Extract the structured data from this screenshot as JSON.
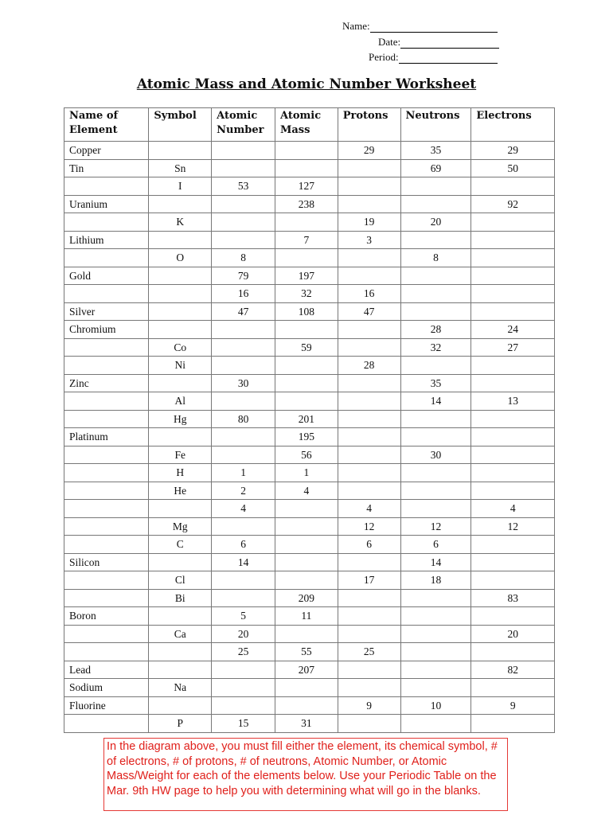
{
  "header_fields": {
    "name_label": "Name:",
    "date_label": "Date:",
    "period_label": "Period:"
  },
  "title": "Atomic Mass and Atomic Number Worksheet",
  "table": {
    "columns": [
      "Name of Element",
      "Symbol",
      "Atomic Number",
      "Atomic Mass",
      "Protons",
      "Neutrons",
      "Electrons"
    ],
    "rows": [
      [
        "Copper",
        "",
        "",
        "",
        "29",
        "35",
        "29"
      ],
      [
        "Tin",
        "Sn",
        "",
        "",
        "",
        "69",
        "50"
      ],
      [
        "",
        "I",
        "53",
        "127",
        "",
        "",
        ""
      ],
      [
        "Uranium",
        "",
        "",
        "238",
        "",
        "",
        "92"
      ],
      [
        "",
        "K",
        "",
        "",
        "19",
        "20",
        ""
      ],
      [
        "Lithium",
        "",
        "",
        "7",
        "3",
        "",
        ""
      ],
      [
        "",
        "O",
        "8",
        "",
        "",
        "8",
        ""
      ],
      [
        "Gold",
        "",
        "79",
        "197",
        "",
        "",
        ""
      ],
      [
        "",
        "",
        "16",
        "32",
        "16",
        "",
        ""
      ],
      [
        "Silver",
        "",
        "47",
        "108",
        "47",
        "",
        ""
      ],
      [
        "Chromium",
        "",
        "",
        "",
        "",
        "28",
        "24"
      ],
      [
        "",
        "Co",
        "",
        "59",
        "",
        "32",
        "27"
      ],
      [
        "",
        "Ni",
        "",
        "",
        "28",
        "",
        ""
      ],
      [
        "Zinc",
        "",
        "30",
        "",
        "",
        "35",
        ""
      ],
      [
        "",
        "Al",
        "",
        "",
        "",
        "14",
        "13"
      ],
      [
        "",
        "Hg",
        "80",
        "201",
        "",
        "",
        ""
      ],
      [
        "Platinum",
        "",
        "",
        "195",
        "",
        "",
        ""
      ],
      [
        "",
        "Fe",
        "",
        "56",
        "",
        "30",
        ""
      ],
      [
        "",
        "H",
        "1",
        "1",
        "",
        "",
        ""
      ],
      [
        "",
        "He",
        "2",
        "4",
        "",
        "",
        ""
      ],
      [
        "",
        "",
        "4",
        "",
        "4",
        "",
        "4"
      ],
      [
        "",
        "Mg",
        "",
        "",
        "12",
        "12",
        "12"
      ],
      [
        "",
        "C",
        "6",
        "",
        "6",
        "6",
        ""
      ],
      [
        "Silicon",
        "",
        "14",
        "",
        "",
        "14",
        ""
      ],
      [
        "",
        "Cl",
        "",
        "",
        "17",
        "18",
        ""
      ],
      [
        "",
        "Bi",
        "",
        "209",
        "",
        "",
        "83"
      ],
      [
        "Boron",
        "",
        "5",
        "11",
        "",
        "",
        ""
      ],
      [
        "",
        "Ca",
        "20",
        "",
        "",
        "",
        "20"
      ],
      [
        "",
        "",
        "25",
        "55",
        "25",
        "",
        ""
      ],
      [
        "Lead",
        "",
        "",
        "207",
        "",
        "",
        "82"
      ],
      [
        "Sodium",
        "Na",
        "",
        "",
        "",
        "",
        ""
      ],
      [
        "Fluorine",
        "",
        "",
        "",
        "9",
        "10",
        "9"
      ],
      [
        "",
        "P",
        "15",
        "31",
        "",
        "",
        ""
      ]
    ]
  },
  "note": "In the diagram above, you must fill either the element, its chemical symbol, # of electrons, # of protons, # of neutrons, Atomic Number, or Atomic Mass/Weight for each of the elements below. Use your Periodic Table on the Mar. 9th HW page to help you with determining what will go in the blanks.",
  "colors": {
    "note_border": "#e53935",
    "note_text": "#e0201b"
  }
}
